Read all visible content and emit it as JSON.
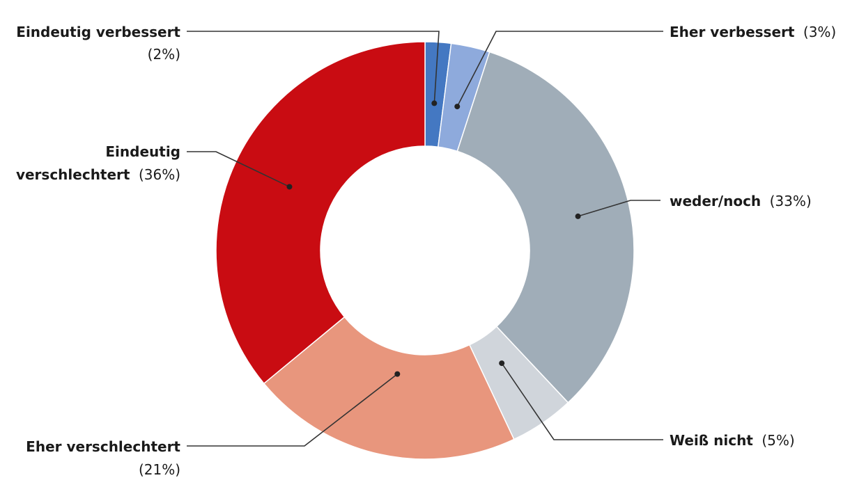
{
  "chart_data": {
    "type": "pie",
    "variant": "donut",
    "legend": "none",
    "slices": [
      {
        "label": "Eindeutig verbessert",
        "value": 2,
        "pct_label": "(2%)",
        "color": "#4478C2"
      },
      {
        "label": "Eher verbessert",
        "value": 3,
        "pct_label": "(3%)",
        "color": "#8EAADC"
      },
      {
        "label": "weder/noch",
        "value": 33,
        "pct_label": "(33%)",
        "color": "#A0ADB8"
      },
      {
        "label": "Weiß nicht",
        "value": 5,
        "pct_label": "(5%)",
        "color": "#D0D5DB"
      },
      {
        "label": "Eher verschlechtert",
        "value": 21,
        "pct_label": "(21%)",
        "color": "#E8967D"
      },
      {
        "label": "Eindeutig verschlechtert",
        "value": 36,
        "pct_label": "(36%)",
        "color": "#C90C12"
      }
    ]
  }
}
